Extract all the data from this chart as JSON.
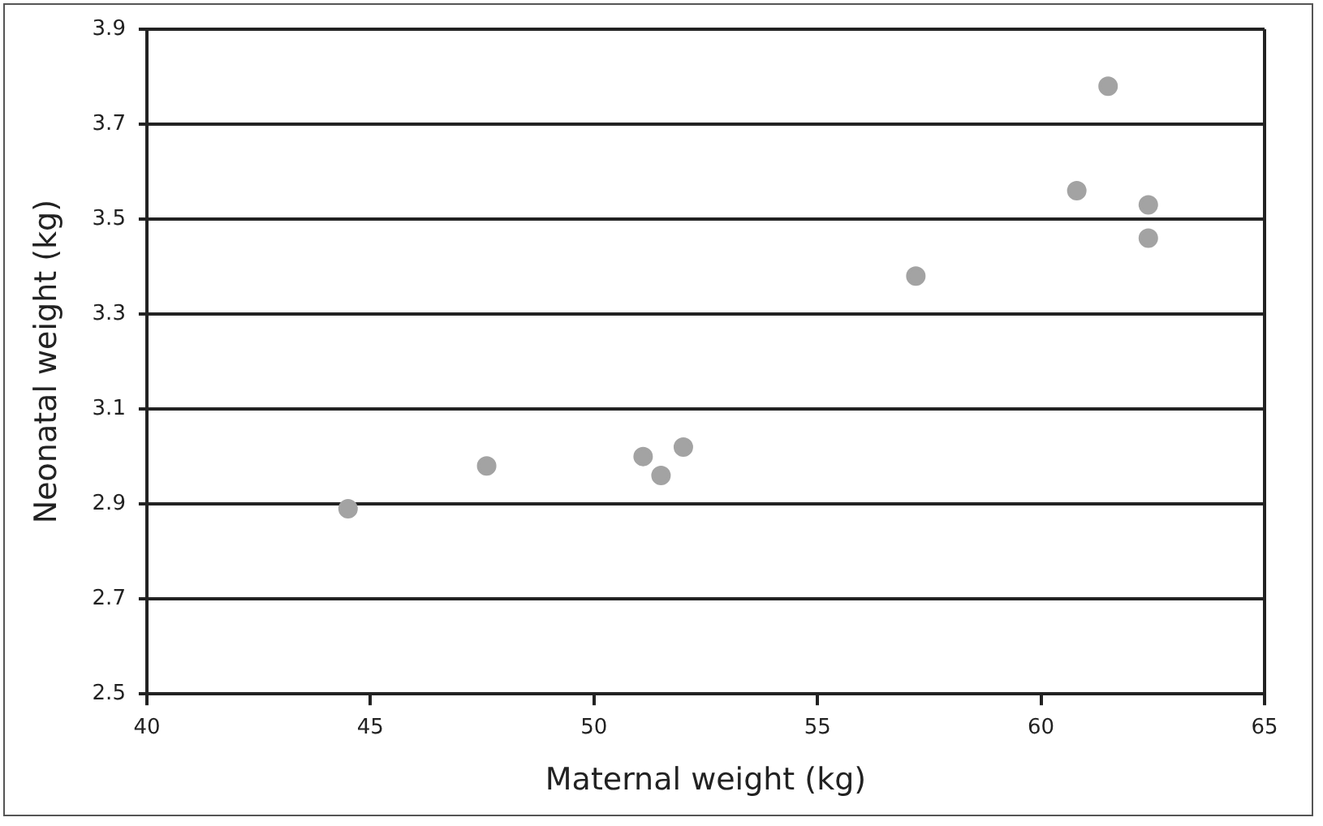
{
  "chart_data": {
    "type": "scatter",
    "xlabel": "Maternal weight (kg)",
    "ylabel": "Neonatal weight (kg)",
    "x": [
      44.5,
      47.6,
      51.1,
      51.5,
      52.0,
      57.2,
      60.8,
      61.5,
      62.4,
      62.4
    ],
    "series": [
      {
        "color": "#a3a3a3",
        "values": [
          2.89,
          2.98,
          3.0,
          2.96,
          3.02,
          3.38,
          3.56,
          3.78,
          3.53,
          3.46
        ]
      }
    ],
    "xlim": [
      40,
      65
    ],
    "xticks": [
      40,
      45,
      50,
      55,
      60,
      65
    ],
    "ylim": [
      2.5,
      3.9
    ],
    "yticks": [
      2.5,
      2.7,
      2.9,
      3.1,
      3.3,
      3.5,
      3.7,
      3.9
    ],
    "grid": "y",
    "legend": false,
    "marker": "circle"
  }
}
